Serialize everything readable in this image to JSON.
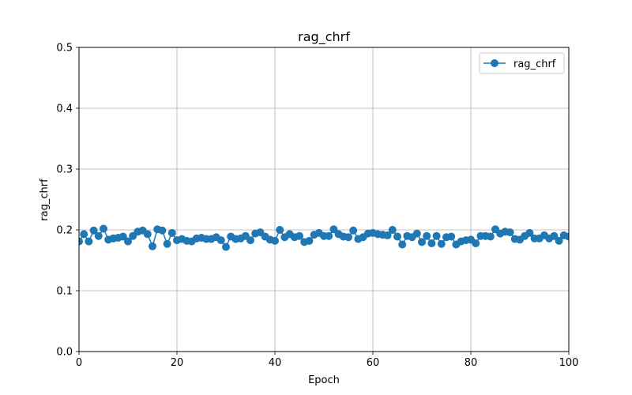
{
  "chart_data": {
    "type": "line",
    "title": "rag_chrf",
    "xlabel": "Epoch",
    "ylabel": "rag_chrf",
    "xlim": [
      0,
      100
    ],
    "ylim": [
      0,
      0.5
    ],
    "x_ticks": [
      0,
      20,
      40,
      60,
      80,
      100
    ],
    "y_ticks": [
      0.0,
      0.1,
      0.2,
      0.3,
      0.4,
      0.5
    ],
    "x_tick_labels": [
      "0",
      "20",
      "40",
      "60",
      "80",
      "100"
    ],
    "y_tick_labels": [
      "0.0",
      "0.1",
      "0.2",
      "0.3",
      "0.4",
      "0.5"
    ],
    "grid": true,
    "legend_position": "top-right",
    "series": [
      {
        "name": "rag_chrf",
        "color": "#1f77b4",
        "marker": "circle",
        "x": [
          0,
          1,
          2,
          3,
          4,
          5,
          6,
          7,
          8,
          9,
          10,
          11,
          12,
          13,
          14,
          15,
          16,
          17,
          18,
          19,
          20,
          21,
          22,
          23,
          24,
          25,
          26,
          27,
          28,
          29,
          30,
          31,
          32,
          33,
          34,
          35,
          36,
          37,
          38,
          39,
          40,
          41,
          42,
          43,
          44,
          45,
          46,
          47,
          48,
          49,
          50,
          51,
          52,
          53,
          54,
          55,
          56,
          57,
          58,
          59,
          60,
          61,
          62,
          63,
          64,
          65,
          66,
          67,
          68,
          69,
          70,
          71,
          72,
          73,
          74,
          75,
          76,
          77,
          78,
          79,
          80,
          81,
          82,
          83,
          84,
          85,
          86,
          87,
          88,
          89,
          90,
          91,
          92,
          93,
          94,
          95,
          96,
          97,
          98,
          99,
          100
        ],
        "values": [
          0.181,
          0.193,
          0.181,
          0.199,
          0.19,
          0.202,
          0.184,
          0.186,
          0.187,
          0.189,
          0.181,
          0.19,
          0.197,
          0.199,
          0.193,
          0.173,
          0.201,
          0.199,
          0.177,
          0.195,
          0.183,
          0.185,
          0.182,
          0.181,
          0.186,
          0.187,
          0.185,
          0.185,
          0.188,
          0.183,
          0.172,
          0.189,
          0.185,
          0.186,
          0.19,
          0.183,
          0.194,
          0.196,
          0.189,
          0.184,
          0.182,
          0.2,
          0.188,
          0.193,
          0.188,
          0.19,
          0.18,
          0.182,
          0.192,
          0.195,
          0.19,
          0.19,
          0.201,
          0.193,
          0.189,
          0.188,
          0.199,
          0.185,
          0.188,
          0.194,
          0.195,
          0.193,
          0.192,
          0.191,
          0.2,
          0.189,
          0.176,
          0.19,
          0.188,
          0.194,
          0.18,
          0.19,
          0.178,
          0.19,
          0.177,
          0.188,
          0.189,
          0.176,
          0.181,
          0.183,
          0.184,
          0.178,
          0.19,
          0.19,
          0.189,
          0.201,
          0.194,
          0.197,
          0.196,
          0.185,
          0.184,
          0.19,
          0.195,
          0.186,
          0.186,
          0.191,
          0.186,
          0.19,
          0.182,
          0.191,
          0.189
        ]
      }
    ]
  }
}
